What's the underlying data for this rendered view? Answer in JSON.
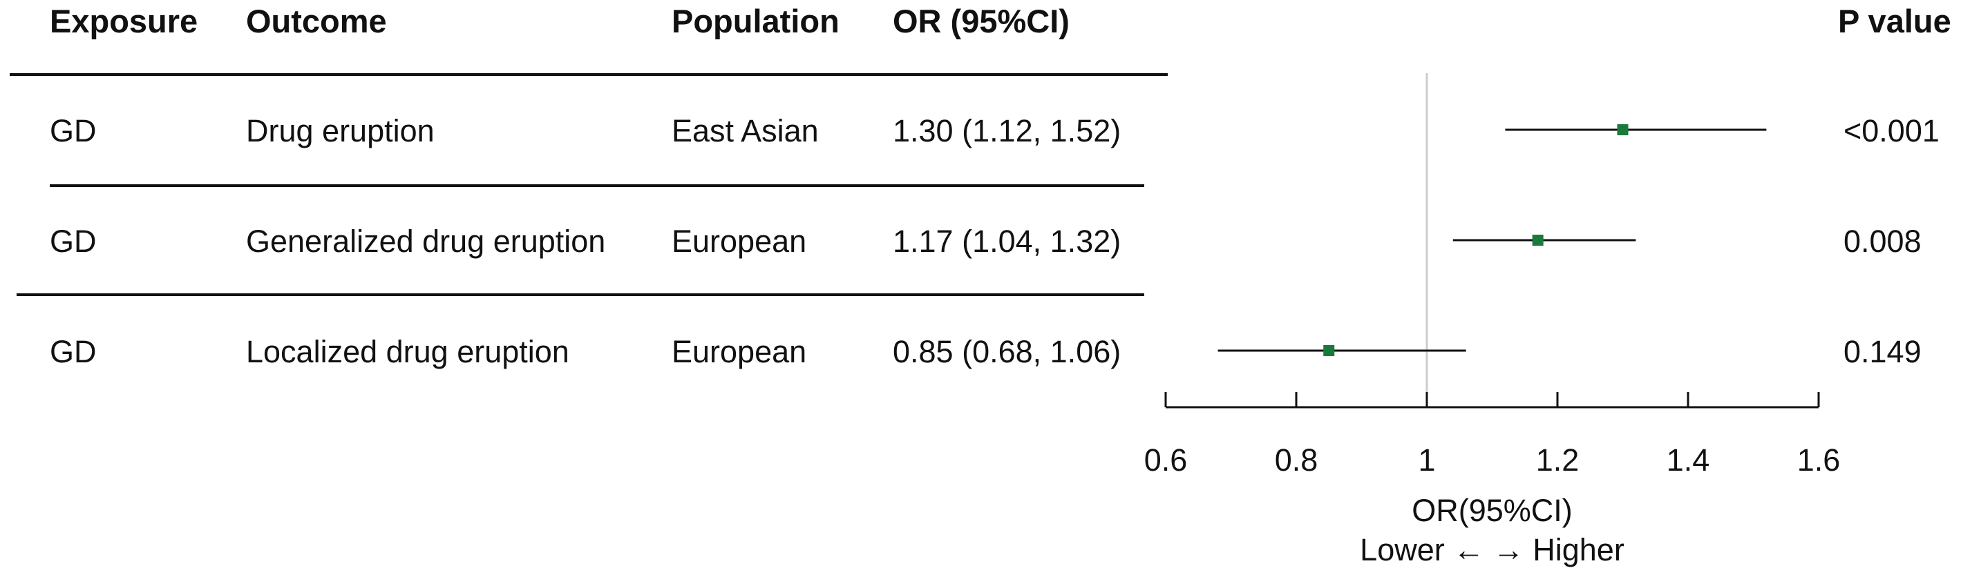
{
  "table": {
    "headers": {
      "exposure": "Exposure",
      "outcome": "Outcome",
      "population": "Population",
      "or_ci": "OR (95%CI)",
      "p_value": "P value"
    },
    "rows": [
      {
        "exposure": "GD",
        "outcome": "Drug eruption",
        "population": "East Asian",
        "or_ci": "1.30 (1.12, 1.52)",
        "p_value": "<0.001"
      },
      {
        "exposure": "GD",
        "outcome": "Generalized drug eruption",
        "population": "European",
        "or_ci": "1.17 (1.04, 1.32)",
        "p_value": "0.008"
      },
      {
        "exposure": "GD",
        "outcome": "Localized drug eruption",
        "population": "European",
        "or_ci": "0.85 (0.68, 1.06)",
        "p_value": "0.149"
      }
    ]
  },
  "chart_data": {
    "type": "forest",
    "x_axis_label": "OR(95%CI)",
    "direction_label": "Lower ←  → Higher",
    "xlim": [
      0.6,
      1.6
    ],
    "ticks": [
      0.6,
      0.8,
      1,
      1.2,
      1.4,
      1.6
    ],
    "tick_labels": [
      "0.6",
      "0.8",
      "1",
      "1.2",
      "1.4",
      "1.6"
    ],
    "reference_line": 1,
    "marker_color": "#1a7a3c",
    "points": [
      {
        "label": "Drug eruption",
        "or": 1.3,
        "lower": 1.12,
        "upper": 1.52
      },
      {
        "label": "Generalized drug eruption",
        "or": 1.17,
        "lower": 1.04,
        "upper": 1.32
      },
      {
        "label": "Localized drug eruption",
        "or": 0.85,
        "lower": 0.68,
        "upper": 1.06
      }
    ]
  }
}
